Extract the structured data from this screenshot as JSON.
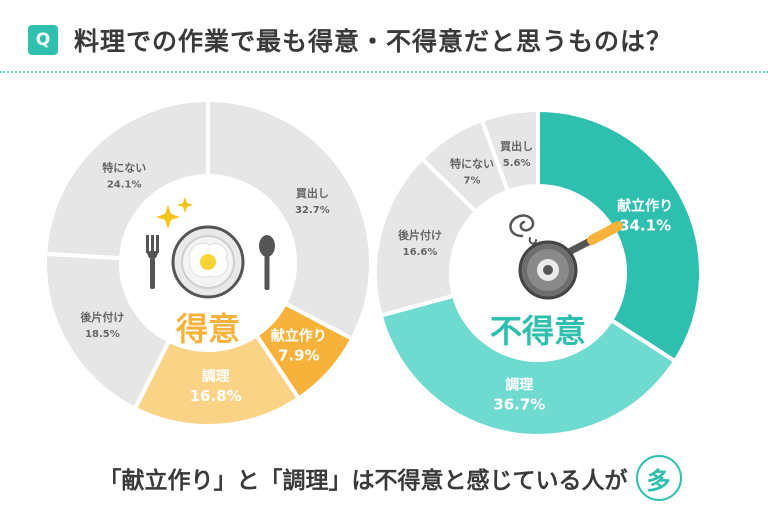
{
  "header": {
    "badge": "Q",
    "question": "料理での作業で最も得意・不得意だと思うものは？"
  },
  "footer": {
    "text": "「献立作り」と「調理」は不得意と感じている人が",
    "emphasis": "多"
  },
  "colors": {
    "teal": "#2fbfae",
    "grey": "#e6e6e6",
    "orange": "#f7b23b",
    "light_orange": "#fbd387",
    "light_teal": "#6fdad0"
  },
  "chart_data": [
    {
      "type": "pie",
      "center_label": "得意",
      "slices": [
        {
          "label": "買出し",
          "value": 32.7,
          "display": "32.7%",
          "color": "#e6e6e6",
          "emphasis": false
        },
        {
          "label": "献立作り",
          "value": 7.9,
          "display": "7.9%",
          "color": "#f7b23b",
          "emphasis": true
        },
        {
          "label": "調理",
          "value": 16.8,
          "display": "16.8%",
          "color": "#fbd387",
          "emphasis": true
        },
        {
          "label": "後片付け",
          "value": 18.5,
          "display": "18.5%",
          "color": "#e6e6e6",
          "emphasis": false
        },
        {
          "label": "特にない",
          "value": 24.1,
          "display": "24.1%",
          "color": "#e6e6e6",
          "emphasis": false
        }
      ]
    },
    {
      "type": "pie",
      "center_label": "不得意",
      "slices": [
        {
          "label": "献立作り",
          "value": 34.1,
          "display": "34.1%",
          "color": "#2fbfae",
          "emphasis": true
        },
        {
          "label": "調理",
          "value": 36.7,
          "display": "36.7%",
          "color": "#6fdad0",
          "emphasis": true
        },
        {
          "label": "後片付け",
          "value": 16.6,
          "display": "16.6%",
          "color": "#e6e6e6",
          "emphasis": false
        },
        {
          "label": "特にない",
          "value": 7.0,
          "display": "7%",
          "color": "#e6e6e6",
          "emphasis": false
        },
        {
          "label": "買出し",
          "value": 5.6,
          "display": "5.6%",
          "color": "#e6e6e6",
          "emphasis": false
        }
      ]
    }
  ]
}
